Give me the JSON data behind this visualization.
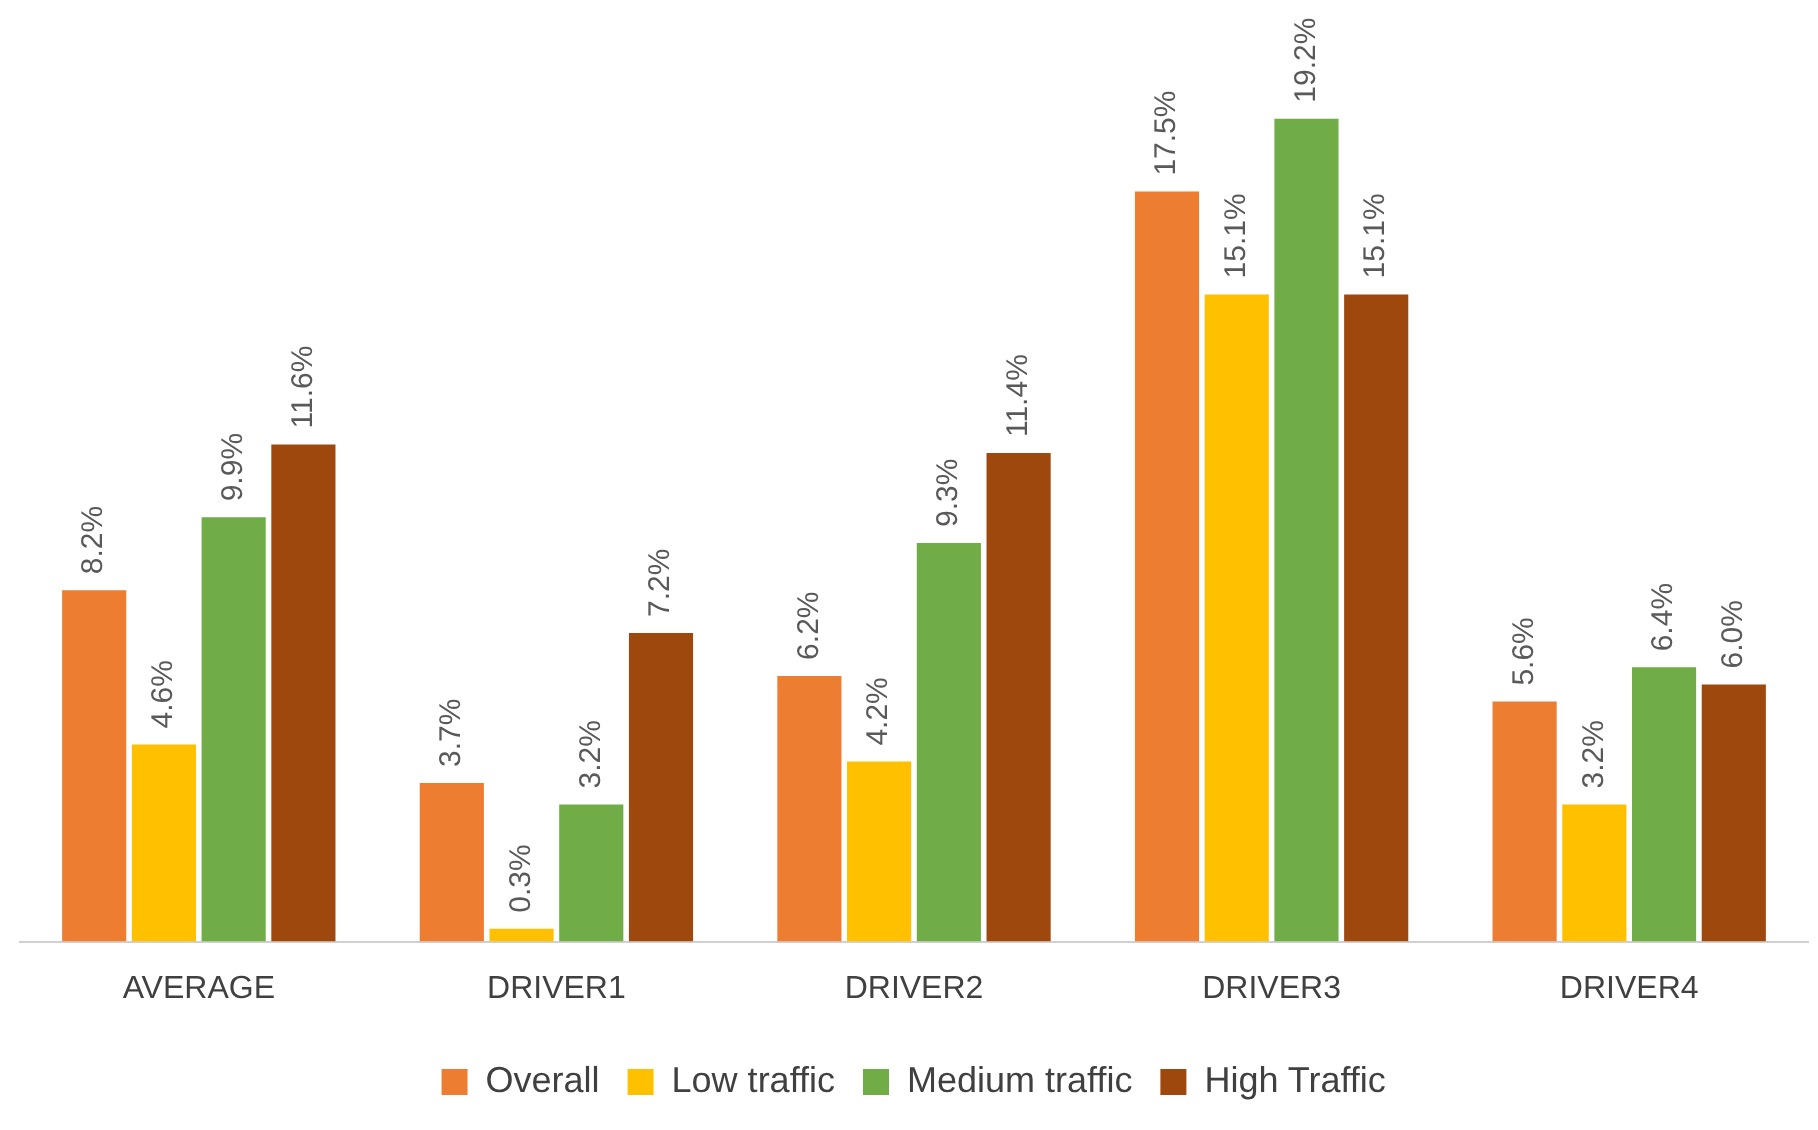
{
  "chart_data": {
    "type": "bar",
    "categories": [
      "AVERAGE",
      "DRIVER1",
      "DRIVER2",
      "DRIVER3",
      "DRIVER4"
    ],
    "series": [
      {
        "name": "Overall",
        "color": "#ed7d31",
        "values": [
          8.2,
          3.7,
          6.2,
          17.5,
          5.6
        ],
        "value_labels": [
          "8.2%",
          "3.7%",
          "6.2%",
          "17.5%",
          "5.6%"
        ]
      },
      {
        "name": "Low traffic",
        "color": "#ffc000",
        "values": [
          4.6,
          0.3,
          4.2,
          15.1,
          3.2
        ],
        "value_labels": [
          "4.6%",
          "0.3%",
          "4.2%",
          "15.1%",
          "3.2%"
        ]
      },
      {
        "name": "Medium traffic",
        "color": "#70ad47",
        "values": [
          9.9,
          3.2,
          9.3,
          19.2,
          6.4
        ],
        "value_labels": [
          "9.9%",
          "3.2%",
          "9.3%",
          "19.2%",
          "6.4%"
        ]
      },
      {
        "name": "High Traffic",
        "color": "#9e480e",
        "values": [
          11.6,
          7.2,
          11.4,
          15.1,
          6.0
        ],
        "value_labels": [
          "11.6%",
          "7.2%",
          "11.4%",
          "15.1%",
          "6.0%"
        ]
      }
    ],
    "grid": false,
    "legend": "bottom"
  }
}
